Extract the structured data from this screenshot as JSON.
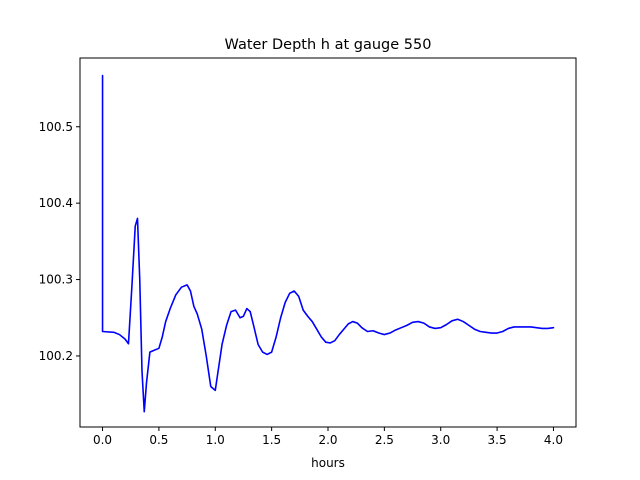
{
  "chart_data": {
    "type": "line",
    "title": "Water Depth h at gauge 550",
    "xlabel": "hours",
    "ylabel": "",
    "xlim": [
      -0.2,
      4.2
    ],
    "ylim": [
      100.107,
      100.59
    ],
    "xticks": [
      0.0,
      0.5,
      1.0,
      1.5,
      2.0,
      2.5,
      3.0,
      3.5,
      4.0
    ],
    "xtick_labels": [
      "0.0",
      "0.5",
      "1.0",
      "1.5",
      "2.0",
      "2.5",
      "3.0",
      "3.5",
      "4.0"
    ],
    "yticks": [
      100.2,
      100.3,
      100.4,
      100.5
    ],
    "ytick_labels": [
      "100.2",
      "100.3",
      "100.4",
      "100.5"
    ],
    "grid": false,
    "series": [
      {
        "color": "#0000ff",
        "x": [
          0.0,
          0.0,
          0.0,
          0.1,
          0.15,
          0.2,
          0.23,
          0.26,
          0.29,
          0.31,
          0.33,
          0.35,
          0.37,
          0.39,
          0.42,
          0.45,
          0.5,
          0.53,
          0.56,
          0.6,
          0.65,
          0.7,
          0.75,
          0.78,
          0.81,
          0.84,
          0.88,
          0.92,
          0.96,
          1.0,
          1.03,
          1.06,
          1.1,
          1.14,
          1.18,
          1.22,
          1.25,
          1.28,
          1.31,
          1.34,
          1.38,
          1.42,
          1.46,
          1.5,
          1.54,
          1.58,
          1.62,
          1.66,
          1.7,
          1.74,
          1.78,
          1.82,
          1.86,
          1.9,
          1.94,
          1.98,
          2.02,
          2.06,
          2.1,
          2.14,
          2.18,
          2.22,
          2.26,
          2.3,
          2.35,
          2.4,
          2.45,
          2.5,
          2.55,
          2.6,
          2.65,
          2.7,
          2.75,
          2.8,
          2.85,
          2.9,
          2.95,
          3.0,
          3.05,
          3.1,
          3.15,
          3.2,
          3.25,
          3.3,
          3.35,
          3.4,
          3.45,
          3.5,
          3.55,
          3.6,
          3.65,
          3.7,
          3.75,
          3.8,
          3.85,
          3.9,
          3.95,
          4.0
        ],
        "y": [
          100.232,
          100.567,
          100.232,
          100.231,
          100.228,
          100.222,
          100.216,
          100.29,
          100.37,
          100.38,
          100.3,
          100.18,
          100.127,
          100.165,
          100.205,
          100.207,
          100.21,
          100.225,
          100.245,
          100.262,
          100.28,
          100.29,
          100.293,
          100.285,
          100.265,
          100.255,
          100.235,
          100.2,
          100.16,
          100.155,
          100.185,
          100.215,
          100.24,
          100.258,
          100.26,
          100.25,
          100.252,
          100.262,
          100.258,
          100.24,
          100.215,
          100.205,
          100.202,
          100.205,
          100.225,
          100.25,
          100.27,
          100.282,
          100.285,
          100.278,
          100.26,
          100.252,
          100.245,
          100.235,
          100.225,
          100.218,
          100.217,
          100.22,
          100.228,
          100.235,
          100.242,
          100.245,
          100.243,
          100.237,
          100.232,
          100.233,
          100.23,
          100.228,
          100.23,
          100.234,
          100.237,
          100.24,
          100.244,
          100.245,
          100.243,
          100.238,
          100.236,
          100.237,
          100.241,
          100.246,
          100.248,
          100.245,
          100.24,
          100.235,
          100.232,
          100.231,
          100.23,
          100.23,
          100.232,
          100.236,
          100.238,
          100.238,
          100.238,
          100.238,
          100.237,
          100.236,
          100.236,
          100.237
        ]
      }
    ]
  }
}
